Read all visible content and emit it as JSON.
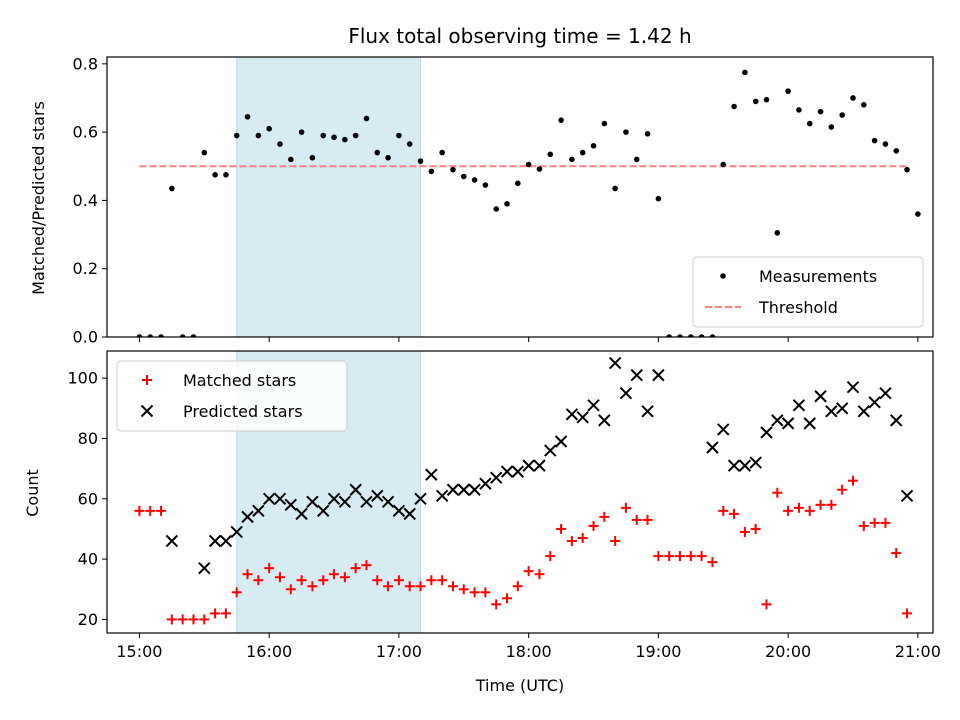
{
  "chart_data": [
    {
      "type": "scatter",
      "title": "Flux total observing time = 1.42 h",
      "xlabel": "",
      "ylabel": "Matched/Predicted stars",
      "xlim": [
        "14:45",
        "21:07"
      ],
      "ylim": [
        0,
        0.82
      ],
      "yticks": [
        "0.0",
        "0.2",
        "0.4",
        "0.6",
        "0.8"
      ],
      "shaded_interval": [
        "15:45",
        "17:10"
      ],
      "shaded_color": "#add8e6",
      "legend_position": "lower right",
      "legend": [
        {
          "label": "Measurements",
          "marker": "dot",
          "color": "#000000"
        },
        {
          "label": "Threshold",
          "marker": "dashed-line",
          "color": "#ff7f7f"
        }
      ],
      "threshold": {
        "value": 0.5,
        "x_range": [
          "15:00",
          "20:55"
        ],
        "color": "#ff7f7f"
      },
      "series": [
        {
          "name": "Measurements",
          "color": "#000000",
          "points": [
            [
              "15:00",
              0.0
            ],
            [
              "15:05",
              0.0
            ],
            [
              "15:10",
              0.0
            ],
            [
              "15:15",
              0.435
            ],
            [
              "15:20",
              0.0
            ],
            [
              "15:25",
              0.0
            ],
            [
              "15:30",
              0.54
            ],
            [
              "15:35",
              0.475
            ],
            [
              "15:40",
              0.475
            ],
            [
              "15:45",
              0.59
            ],
            [
              "15:50",
              0.645
            ],
            [
              "15:55",
              0.59
            ],
            [
              "16:00",
              0.61
            ],
            [
              "16:05",
              0.565
            ],
            [
              "16:10",
              0.52
            ],
            [
              "16:15",
              0.6
            ],
            [
              "16:20",
              0.525
            ],
            [
              "16:25",
              0.59
            ],
            [
              "16:30",
              0.585
            ],
            [
              "16:35",
              0.578
            ],
            [
              "16:40",
              0.59
            ],
            [
              "16:45",
              0.64
            ],
            [
              "16:50",
              0.54
            ],
            [
              "16:55",
              0.525
            ],
            [
              "17:00",
              0.59
            ],
            [
              "17:05",
              0.565
            ],
            [
              "17:10",
              0.515
            ],
            [
              "17:15",
              0.485
            ],
            [
              "17:20",
              0.54
            ],
            [
              "17:25",
              0.49
            ],
            [
              "17:30",
              0.47
            ],
            [
              "17:35",
              0.46
            ],
            [
              "17:40",
              0.445
            ],
            [
              "17:45",
              0.375
            ],
            [
              "17:50",
              0.39
            ],
            [
              "17:55",
              0.45
            ],
            [
              "18:00",
              0.505
            ],
            [
              "18:05",
              0.492
            ],
            [
              "18:10",
              0.535
            ],
            [
              "18:15",
              0.635
            ],
            [
              "18:20",
              0.52
            ],
            [
              "18:25",
              0.54
            ],
            [
              "18:30",
              0.56
            ],
            [
              "18:35",
              0.625
            ],
            [
              "18:40",
              0.435
            ],
            [
              "18:45",
              0.6
            ],
            [
              "18:50",
              0.52
            ],
            [
              "18:55",
              0.595
            ],
            [
              "19:00",
              0.405
            ],
            [
              "19:05",
              0.0
            ],
            [
              "19:10",
              0.0
            ],
            [
              "19:15",
              0.0
            ],
            [
              "19:20",
              0.0
            ],
            [
              "19:25",
              0.0
            ],
            [
              "19:30",
              0.505
            ],
            [
              "19:35",
              0.675
            ],
            [
              "19:40",
              0.775
            ],
            [
              "19:45",
              0.69
            ],
            [
              "19:50",
              0.695
            ],
            [
              "19:55",
              0.305
            ],
            [
              "20:00",
              0.72
            ],
            [
              "20:05",
              0.665
            ],
            [
              "20:10",
              0.625
            ],
            [
              "20:15",
              0.66
            ],
            [
              "20:20",
              0.615
            ],
            [
              "20:25",
              0.65
            ],
            [
              "20:30",
              0.7
            ],
            [
              "20:35",
              0.68
            ],
            [
              "20:40",
              0.575
            ],
            [
              "20:45",
              0.565
            ],
            [
              "20:50",
              0.545
            ],
            [
              "20:55",
              0.49
            ],
            [
              "21:00",
              0.36
            ]
          ]
        }
      ]
    },
    {
      "type": "scatter",
      "title": "",
      "xlabel": "Time (UTC)",
      "ylabel": "Count",
      "xlim": [
        "14:45",
        "21:07"
      ],
      "ylim": [
        15.5,
        109
      ],
      "xticks": [
        "15:00",
        "16:00",
        "17:00",
        "18:00",
        "19:00",
        "20:00",
        "21:00"
      ],
      "yticks": [
        "20",
        "40",
        "60",
        "80",
        "100"
      ],
      "shaded_interval": [
        "15:45",
        "17:10"
      ],
      "shaded_color": "#add8e6",
      "legend_position": "upper left",
      "legend": [
        {
          "label": "Matched stars",
          "marker": "plus",
          "color": "#ff0000"
        },
        {
          "label": "Predicted stars",
          "marker": "x",
          "color": "#000000"
        }
      ],
      "series": [
        {
          "name": "Matched stars",
          "color": "#ff0000",
          "points": [
            [
              "15:00",
              56
            ],
            [
              "15:05",
              56
            ],
            [
              "15:10",
              56
            ],
            [
              "15:15",
              20
            ],
            [
              "15:20",
              20
            ],
            [
              "15:25",
              20
            ],
            [
              "15:30",
              20
            ],
            [
              "15:35",
              22
            ],
            [
              "15:40",
              22
            ],
            [
              "15:45",
              29
            ],
            [
              "15:50",
              35
            ],
            [
              "15:55",
              33
            ],
            [
              "16:00",
              37
            ],
            [
              "16:05",
              34
            ],
            [
              "16:10",
              30
            ],
            [
              "16:15",
              33
            ],
            [
              "16:20",
              31
            ],
            [
              "16:25",
              33
            ],
            [
              "16:30",
              35
            ],
            [
              "16:35",
              34
            ],
            [
              "16:40",
              37
            ],
            [
              "16:45",
              38
            ],
            [
              "16:50",
              33
            ],
            [
              "16:55",
              31
            ],
            [
              "17:00",
              33
            ],
            [
              "17:05",
              31
            ],
            [
              "17:10",
              31
            ],
            [
              "17:15",
              33
            ],
            [
              "17:20",
              33
            ],
            [
              "17:25",
              31
            ],
            [
              "17:30",
              30
            ],
            [
              "17:35",
              29
            ],
            [
              "17:40",
              29
            ],
            [
              "17:45",
              25
            ],
            [
              "17:50",
              27
            ],
            [
              "17:55",
              31
            ],
            [
              "18:00",
              36
            ],
            [
              "18:05",
              35
            ],
            [
              "18:10",
              41
            ],
            [
              "18:15",
              50
            ],
            [
              "18:20",
              46
            ],
            [
              "18:25",
              47
            ],
            [
              "18:30",
              51
            ],
            [
              "18:35",
              54
            ],
            [
              "18:40",
              46
            ],
            [
              "18:45",
              57
            ],
            [
              "18:50",
              53
            ],
            [
              "18:55",
              53
            ],
            [
              "19:00",
              41
            ],
            [
              "19:05",
              41
            ],
            [
              "19:10",
              41
            ],
            [
              "19:15",
              41
            ],
            [
              "19:20",
              41
            ],
            [
              "19:25",
              39
            ],
            [
              "19:30",
              56
            ],
            [
              "19:35",
              55
            ],
            [
              "19:40",
              49
            ],
            [
              "19:45",
              50
            ],
            [
              "19:50",
              25
            ],
            [
              "19:55",
              62
            ],
            [
              "20:00",
              56
            ],
            [
              "20:05",
              57
            ],
            [
              "20:10",
              56
            ],
            [
              "20:15",
              58
            ],
            [
              "20:20",
              58
            ],
            [
              "20:25",
              63
            ],
            [
              "20:30",
              66
            ],
            [
              "20:35",
              51
            ],
            [
              "20:40",
              52
            ],
            [
              "20:45",
              52
            ],
            [
              "20:50",
              42
            ],
            [
              "20:55",
              22
            ]
          ]
        },
        {
          "name": "Predicted stars",
          "color": "#000000",
          "points": [
            [
              "15:15",
              46
            ],
            [
              "15:30",
              37
            ],
            [
              "15:35",
              46
            ],
            [
              "15:40",
              46
            ],
            [
              "15:45",
              49
            ],
            [
              "15:50",
              54
            ],
            [
              "15:55",
              56
            ],
            [
              "16:00",
              60
            ],
            [
              "16:05",
              60
            ],
            [
              "16:10",
              58
            ],
            [
              "16:15",
              55
            ],
            [
              "16:20",
              59
            ],
            [
              "16:25",
              56
            ],
            [
              "16:30",
              60
            ],
            [
              "16:35",
              59
            ],
            [
              "16:40",
              63
            ],
            [
              "16:45",
              59
            ],
            [
              "16:50",
              61
            ],
            [
              "16:55",
              59
            ],
            [
              "17:00",
              56
            ],
            [
              "17:05",
              55
            ],
            [
              "17:10",
              60
            ],
            [
              "17:15",
              68
            ],
            [
              "17:20",
              61
            ],
            [
              "17:25",
              63
            ],
            [
              "17:30",
              63
            ],
            [
              "17:35",
              63
            ],
            [
              "17:40",
              65
            ],
            [
              "17:45",
              67
            ],
            [
              "17:50",
              69
            ],
            [
              "17:55",
              69
            ],
            [
              "18:00",
              71
            ],
            [
              "18:05",
              71
            ],
            [
              "18:10",
              76
            ],
            [
              "18:15",
              79
            ],
            [
              "18:20",
              88
            ],
            [
              "18:25",
              87
            ],
            [
              "18:30",
              91
            ],
            [
              "18:35",
              86
            ],
            [
              "18:40",
              105
            ],
            [
              "18:45",
              95
            ],
            [
              "18:50",
              101
            ],
            [
              "18:55",
              89
            ],
            [
              "19:00",
              101
            ],
            [
              "19:25",
              77
            ],
            [
              "19:30",
              83
            ],
            [
              "19:35",
              71
            ],
            [
              "19:40",
              71
            ],
            [
              "19:45",
              72
            ],
            [
              "19:50",
              82
            ],
            [
              "19:55",
              86
            ],
            [
              "20:00",
              85
            ],
            [
              "20:05",
              91
            ],
            [
              "20:10",
              85
            ],
            [
              "20:15",
              94
            ],
            [
              "20:20",
              89
            ],
            [
              "20:25",
              90
            ],
            [
              "20:30",
              97
            ],
            [
              "20:35",
              89
            ],
            [
              "20:40",
              92
            ],
            [
              "20:45",
              95
            ],
            [
              "20:50",
              86
            ],
            [
              "20:55",
              61
            ]
          ]
        }
      ]
    }
  ]
}
